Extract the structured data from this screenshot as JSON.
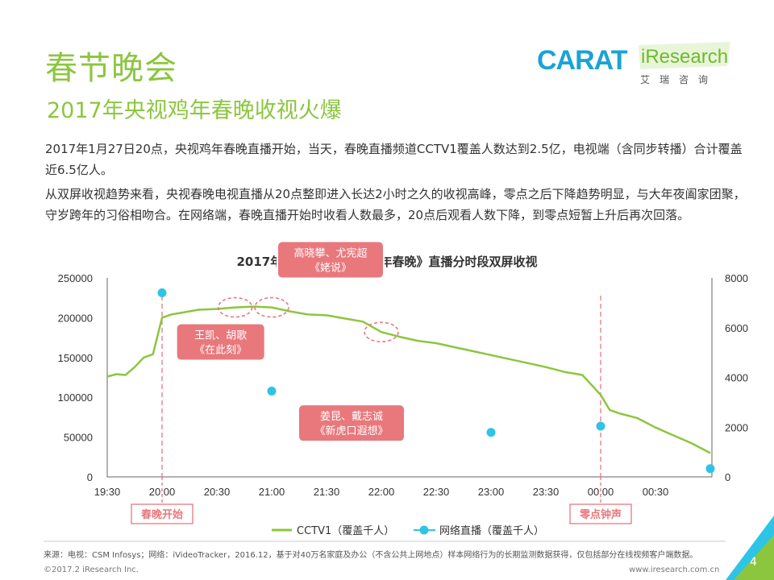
{
  "header": {
    "title": "春节晚会",
    "subtitle": "2017年央视鸡年春晚收视火爆"
  },
  "logos": {
    "carat": "CARAT",
    "iresearch": "iResearch",
    "iresearch_cn": "艾瑞咨询"
  },
  "body": {
    "paragraph1": "2017年1月27日20点，央视鸡年春晚直播开始，当天，春晚直播频道CCTV1覆盖人数达到2.5亿，电视端（含同步转播）合计覆盖近6.5亿人。",
    "paragraph2": "从双屏收视趋势来看，央视春晚电视直播从20点整即进入长达2小时之久的收视高峰，零点之后下降趋势明显，与大年夜阖家团聚，守岁跨年的习俗相吻合。在网络端，春晚直播开始时收看人数最多，20点后观看人数下降，到零点短暂上升后再次回落。"
  },
  "chart_data": {
    "type": "line",
    "title": "2017年1月27日《央视鸡年春晚》直播分时段双屏收视",
    "x_ticks": [
      "19:30",
      "20:00",
      "20:30",
      "21:00",
      "21:30",
      "22:00",
      "22:30",
      "23:00",
      "23:30",
      "00:00",
      "00:30"
    ],
    "y_left_ticks": [
      "250000",
      "200000",
      "150000",
      "100000",
      "50000",
      "0"
    ],
    "y_right_ticks": [
      "8000",
      "6000",
      "4000",
      "2000",
      "0"
    ],
    "ylim_left": [
      0,
      250000
    ],
    "ylim_right": [
      0,
      8000
    ],
    "series": [
      {
        "name": "CCTV1（覆盖千人）",
        "axis": "left",
        "color": "#8cc63f",
        "x": [
          "19:30",
          "19:35",
          "19:40",
          "19:45",
          "19:50",
          "19:55",
          "20:00",
          "20:05",
          "20:10",
          "20:15",
          "20:20",
          "20:30",
          "20:40",
          "20:50",
          "21:00",
          "21:10",
          "21:20",
          "21:30",
          "21:40",
          "21:50",
          "22:00",
          "22:10",
          "22:20",
          "22:30",
          "22:40",
          "22:50",
          "23:00",
          "23:10",
          "23:20",
          "23:30",
          "23:40",
          "23:50",
          "00:00",
          "00:05",
          "00:10",
          "00:20",
          "00:30",
          "00:40",
          "00:50",
          "01:00"
        ],
        "values": [
          126000,
          129000,
          128000,
          138000,
          150000,
          154000,
          200000,
          204000,
          206000,
          208000,
          210000,
          211000,
          213000,
          214000,
          213000,
          208000,
          204000,
          203000,
          199000,
          195000,
          182000,
          176000,
          171000,
          168000,
          163000,
          158000,
          153000,
          148000,
          143000,
          138000,
          132000,
          128000,
          103000,
          84000,
          80000,
          74000,
          62000,
          52000,
          42000,
          30000
        ]
      },
      {
        "name": "网络直播（覆盖千人）",
        "axis": "right",
        "color": "#2ec4e6",
        "x": [
          "20:00",
          "21:00",
          "22:00",
          "23:00",
          "00:00",
          "01:00"
        ],
        "values": [
          7400,
          3450,
          2130,
          1790,
          2040,
          330
        ]
      }
    ],
    "markers": [
      {
        "x": "20:00",
        "label": "春晚开始"
      },
      {
        "x": "00:00",
        "label": "零点钟声"
      }
    ],
    "annotations": [
      {
        "x": "20:40",
        "label": "王凯、胡歌\n《在此刻》"
      },
      {
        "x": "21:00",
        "label": "高晓攀、尤宪超\n《姥说》"
      },
      {
        "x": "22:00",
        "label": "姜昆、戴志诚\n《新虎口遐想》"
      }
    ],
    "legend_position": "bottom"
  },
  "footer": {
    "source": "来源：电视：CSM Infosys；网络：iVideoTracker，2016.12，基于对40万名家庭及办公（不含公共上网地点）样本网络行为的长期监测数据获得，仅包括部分在线视频客户端数据。",
    "copyright": "©2017.2 iResearch Inc.",
    "site": "www.iresearch.com.cn",
    "page": "4"
  },
  "colors": {
    "accent": "#8cc63f",
    "online": "#2ec4e6",
    "callout": "#e8787c",
    "marker": "#e8787c"
  }
}
